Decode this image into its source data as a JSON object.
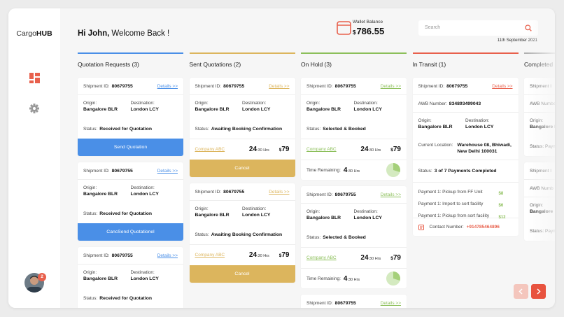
{
  "sidebar": {
    "brand_light": "Cargo",
    "brand_bold": "HUB",
    "badge": "2"
  },
  "header": {
    "greeting_bold": "Hi John,",
    "greeting": "Welcome Back !",
    "wallet_label": "Wallet Balance",
    "wallet_currency": "$",
    "wallet_amount": "786.55",
    "search_placeholder": "Search",
    "date": "11th September 2021"
  },
  "columns": [
    {
      "title": "Quotation Requests (3)",
      "color": "#4a8fe7",
      "button_color": "#4a8fe7",
      "cards": [
        {
          "shipment_label": "Shipment ID:",
          "shipment_id": "80679755",
          "details": "Details >>",
          "origin_label": "Origin:",
          "origin": "Bangalore BLR",
          "destination_label": "Destination:",
          "destination": "London LCY",
          "status_label": "Status:",
          "status": "Received for Quotation",
          "button": "Send Quotation"
        },
        {
          "shipment_label": "Shipment ID:",
          "shipment_id": "80679755",
          "details": "Details >>",
          "origin_label": "Origin:",
          "origin": "Bangalore BLR",
          "destination_label": "Destination:",
          "destination": "London LCY",
          "status_label": "Status:",
          "status": "Received for Quotation",
          "button": "CancSend Quotationel"
        },
        {
          "shipment_label": "Shipment ID:",
          "shipment_id": "80679755",
          "details": "Details >>",
          "origin_label": "Origin:",
          "origin": "Bangalore BLR",
          "destination_label": "Destination:",
          "destination": "London LCY",
          "status_label": "Status:",
          "status": "Received for Quotation"
        }
      ]
    },
    {
      "title": "Sent Quotations (2)",
      "color": "#dcb55d",
      "button_color": "#dcb55d",
      "cards": [
        {
          "shipment_label": "Shipment ID:",
          "shipment_id": "80679755",
          "details": "Details >>",
          "origin_label": "Origin:",
          "origin": "Bangalore BLR",
          "destination_label": "Destination:",
          "destination": "London LCY",
          "status_label": "Status:",
          "status": "Awaiting Booking Confirmation",
          "company": "Company ABC",
          "time": "24",
          "time_unit": ":30 Hrs",
          "currency": "$",
          "price": "79",
          "button": "Cancel"
        },
        {
          "shipment_label": "Shipment ID:",
          "shipment_id": "80679755",
          "details": "Details >>",
          "origin_label": "Origin:",
          "origin": "Bangalore BLR",
          "destination_label": "Destination:",
          "destination": "London LCY",
          "status_label": "Status:",
          "status": "Awaiting Booking Confirmation",
          "company": "Company ABC",
          "time": "24",
          "time_unit": ":30 Hrs",
          "currency": "$",
          "price": "79",
          "button": "Cancel"
        }
      ]
    },
    {
      "title": "On Hold (3)",
      "color": "#8cbf5a",
      "cards": [
        {
          "shipment_label": "Shipment ID:",
          "shipment_id": "80679755",
          "details": "Details >>",
          "origin_label": "Origin:",
          "origin": "Bangalore BLR",
          "destination_label": "Destination:",
          "destination": "London LCY",
          "status_label": "Status:",
          "status": "Selected & Booked",
          "company": "Company ABC",
          "time": "24",
          "time_unit": ":30 Hrs",
          "currency": "$",
          "price": "79",
          "remaining_label": "Time Remaining:",
          "remaining": "4",
          "remaining_unit": ":30 Hrs"
        },
        {
          "shipment_label": "Shipment ID:",
          "shipment_id": "80679755",
          "details": "Details >>",
          "origin_label": "Origin:",
          "origin": "Bangalore BLR",
          "destination_label": "Destination:",
          "destination": "London LCY",
          "status_label": "Status:",
          "status": "Selected & Booked",
          "company": "Company ABC",
          "time": "24",
          "time_unit": ":30 Hrs",
          "currency": "$",
          "price": "79",
          "remaining_label": "Time Remaining:",
          "remaining": "4",
          "remaining_unit": ":30 Hrs"
        },
        {
          "shipment_label": "Shipment ID:",
          "shipment_id": "80679755",
          "details": "Details >>"
        }
      ]
    },
    {
      "title": "In Transit (1)",
      "color": "#e8604c",
      "cards": [
        {
          "shipment_label": "Shipment ID:",
          "shipment_id": "80679755",
          "details": "Details >>",
          "awb_label": "AWB Number:",
          "awb": "834893499043",
          "origin_label": "Origin:",
          "origin": "Bangalore BLR",
          "destination_label": "Destination:",
          "destination": "London LCY",
          "location_label": "Current Location:",
          "location": "Warehouse 08, Bhiwadi, New Delhi 100031",
          "status_label": "Status:",
          "status": "3 of 7 Payments Completed",
          "payments": [
            {
              "label": "Payment 1: Pickup from FF Unit",
              "currency": "$",
              "amount": "8"
            },
            {
              "label": "Payment 1: Import to sort facility",
              "currency": "$",
              "amount": "6"
            },
            {
              "label": "Payment 1: Pickup from sort facility",
              "currency": "$",
              "amount": "12"
            }
          ],
          "contact_label": "Contact Number:",
          "contact": "+914785464896"
        }
      ]
    },
    {
      "title": "Completed",
      "color": "#b0b0b0",
      "cards": [
        {
          "shipment_label": "Shipment I",
          "awb_label": "AWB Numbe",
          "origin_label": "Origin:",
          "origin": "Bangalore B",
          "status_label": "Status: Paym"
        },
        {
          "shipment_label": "Shipment I",
          "awb_label": "AWB Numb",
          "origin_label": "Origin:",
          "origin": "Bangalore",
          "status_label": "Status: Paym"
        }
      ]
    }
  ]
}
